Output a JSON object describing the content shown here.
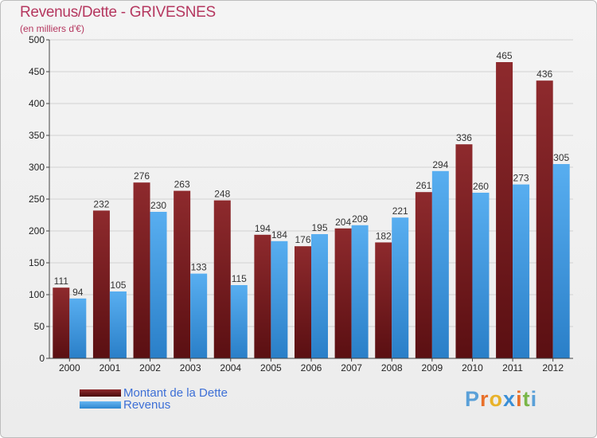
{
  "header": {
    "title": "Revenus/Dette - GRIVESNES",
    "subtitle": "(en milliers d'€)"
  },
  "colors": {
    "dette": "#7a1f22",
    "revenus": "#3a95dc",
    "title": "#b5375f",
    "legend_text": "#3d6fd6"
  },
  "chart_data": {
    "type": "bar",
    "title": "Revenus/Dette - GRIVESNES",
    "subtitle": "(en milliers d'€)",
    "categories": [
      "2000",
      "2001",
      "2002",
      "2003",
      "2004",
      "2005",
      "2006",
      "2007",
      "2008",
      "2009",
      "2010",
      "2011",
      "2012"
    ],
    "series": [
      {
        "name": "Montant de la Dette",
        "values": [
          111,
          232,
          276,
          263,
          248,
          194,
          176,
          204,
          182,
          261,
          336,
          465,
          436
        ]
      },
      {
        "name": "Revenus",
        "values": [
          94,
          105,
          230,
          133,
          115,
          184,
          195,
          209,
          221,
          294,
          260,
          273,
          305
        ]
      }
    ],
    "ylim": [
      0,
      500
    ],
    "yticks": [
      0,
      50,
      100,
      150,
      200,
      250,
      300,
      350,
      400,
      450,
      500
    ],
    "grid": true,
    "legend": "bottom-left"
  },
  "legend": {
    "items": [
      {
        "label": "Montant de la Dette"
      },
      {
        "label": "Revenus"
      }
    ]
  },
  "logo": {
    "letters": [
      "P",
      "r",
      "o",
      "x",
      "i",
      "t",
      "i"
    ],
    "colors": [
      "#5aa0d8",
      "#e8702a",
      "#e8b22a",
      "#3b8fd6",
      "#e8702a",
      "#7ab648",
      "#5aa0d8"
    ]
  }
}
